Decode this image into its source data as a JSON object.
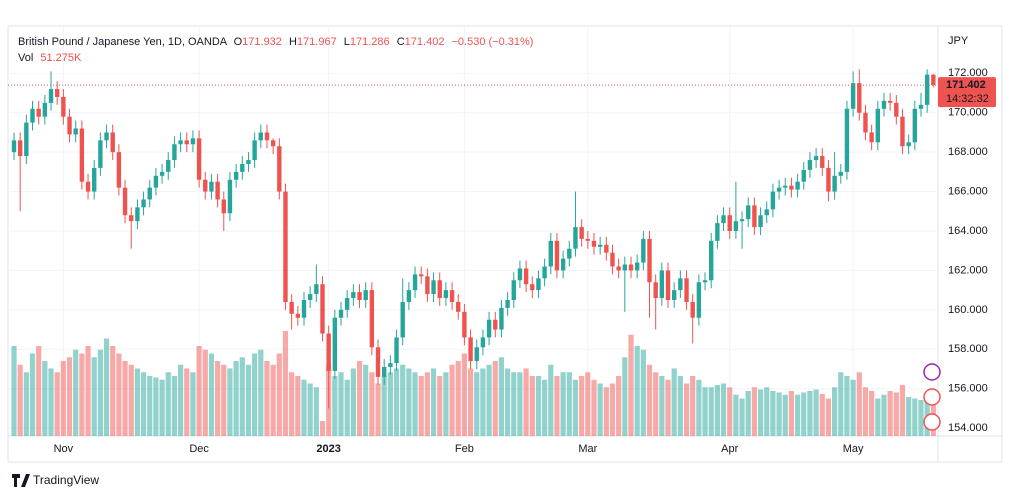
{
  "chart_data": {
    "type": "candlestick",
    "title": "British Pound / Japanese Yen, 1D, OANDA",
    "ohlc_labels": [
      "O",
      "H",
      "L",
      "C"
    ],
    "change_label": "−0.530 (−0.31%)",
    "volume_title": "Vol",
    "volume_value_label": "51.275K",
    "currency": "JPY",
    "countdown": "14:32:32",
    "brand": "TradingView",
    "up_color": "#26a69a",
    "down_color": "#ef5350",
    "ylim": [
      153.6,
      174.4
    ],
    "yticks": [
      {
        "value": 154,
        "label": "154.000"
      },
      {
        "value": 156,
        "label": "156.000"
      },
      {
        "value": 158,
        "label": "158.000"
      },
      {
        "value": 160,
        "label": "160.000"
      },
      {
        "value": 162,
        "label": "162.000"
      },
      {
        "value": 164,
        "label": "164.000"
      },
      {
        "value": 166,
        "label": "166.000"
      },
      {
        "value": 168,
        "label": "168.000"
      },
      {
        "value": 170,
        "label": "170.000"
      },
      {
        "value": 172,
        "label": "172.000"
      }
    ],
    "xticks": [
      {
        "value": 8,
        "label": "Nov"
      },
      {
        "value": 30,
        "label": "Dec"
      },
      {
        "value": 51,
        "label": "2023"
      },
      {
        "value": 73,
        "label": "Feb"
      },
      {
        "value": 93,
        "label": "Mar"
      },
      {
        "value": 116,
        "label": "Apr"
      },
      {
        "value": 136,
        "label": "May"
      }
    ],
    "grid": true,
    "open": [
      168.0,
      168.6,
      167.8,
      169.5,
      170.2,
      169.8,
      170.5,
      171.2,
      170.8,
      169.8,
      168.9,
      169.2,
      166.5,
      166.0,
      167.2,
      168.6,
      169.0,
      168.0,
      166.2,
      164.8,
      164.5,
      165.2,
      165.6,
      166.2,
      166.8,
      167.0,
      167.6,
      168.4,
      168.6,
      168.4,
      168.7,
      166.6,
      166.0,
      166.5,
      165.6,
      164.9,
      166.6,
      167.0,
      167.4,
      167.6,
      168.6,
      169.0,
      168.6,
      168.3,
      166.0,
      160.4,
      159.8,
      159.6,
      160.5,
      160.8,
      161.3,
      158.8,
      156.9,
      159.6,
      160.0,
      160.6,
      160.9,
      160.5,
      161.0,
      158.1,
      156.6,
      157.1,
      157.3,
      158.6,
      160.4,
      161.0,
      161.8,
      161.7,
      160.8,
      161.5,
      160.6,
      161.0,
      160.4,
      159.9,
      158.6,
      157.4,
      158.1,
      158.6,
      159.5,
      159.0,
      160.1,
      160.5,
      161.5,
      162.1,
      161.3,
      161.0,
      161.6,
      162.2,
      163.5,
      162.0,
      162.6,
      163.1,
      164.2,
      163.6,
      163.5,
      163.2,
      163.3,
      162.9,
      162.2,
      162.0,
      162.3,
      162.0,
      162.4,
      163.6,
      161.4,
      160.6,
      162.0,
      160.5,
      161.0,
      161.6,
      160.4,
      159.6,
      161.4,
      161.5,
      163.5,
      164.4,
      164.8,
      164.0,
      164.5,
      164.6,
      165.3,
      164.2,
      164.8,
      165.1,
      166.0,
      166.2,
      166.3,
      166.1,
      166.5,
      167.1,
      167.6,
      167.8,
      167.2,
      166.0,
      166.8,
      167.0,
      170.2,
      171.5,
      170.0,
      169.0,
      168.5,
      170.2,
      170.6,
      170.5,
      169.8,
      168.3,
      168.5,
      170.2,
      170.4,
      171.932
    ],
    "high": [
      169.0,
      169.0,
      169.9,
      170.6,
      170.6,
      170.9,
      172.1,
      171.6,
      171.2,
      170.2,
      169.6,
      169.6,
      166.9,
      167.6,
      169.0,
      169.4,
      169.4,
      168.4,
      166.6,
      165.2,
      165.6,
      166.0,
      166.6,
      167.2,
      167.4,
      168.0,
      168.8,
      169.0,
      169.0,
      169.1,
      169.1,
      167.0,
      166.9,
      166.9,
      166.0,
      167.0,
      167.4,
      167.8,
      168.0,
      169.0,
      169.4,
      169.4,
      168.7,
      168.7,
      166.4,
      160.8,
      160.2,
      160.9,
      161.2,
      162.3,
      161.7,
      159.2,
      160.0,
      160.4,
      161.0,
      161.3,
      161.3,
      161.4,
      161.4,
      158.5,
      157.5,
      157.7,
      159.0,
      161.6,
      161.4,
      162.2,
      162.2,
      162.1,
      161.9,
      161.9,
      161.4,
      161.4,
      160.8,
      160.3,
      159.0,
      158.5,
      159.0,
      159.9,
      159.9,
      160.5,
      160.9,
      161.9,
      162.5,
      162.5,
      161.7,
      162.0,
      162.6,
      163.9,
      163.9,
      163.0,
      163.5,
      166.0,
      164.6,
      164.0,
      163.9,
      163.7,
      163.7,
      163.3,
      162.6,
      162.7,
      162.7,
      162.8,
      164.0,
      164.0,
      161.8,
      162.4,
      162.4,
      161.4,
      162.0,
      162.0,
      160.8,
      161.8,
      161.9,
      163.9,
      164.8,
      165.2,
      165.2,
      166.5,
      165.0,
      165.7,
      165.7,
      165.2,
      165.5,
      166.4,
      166.6,
      166.7,
      166.7,
      166.9,
      167.5,
      168.0,
      168.2,
      168.2,
      167.6,
      168.0,
      167.4,
      170.6,
      172.1,
      172.2,
      170.4,
      169.4,
      170.6,
      171.0,
      171.0,
      170.9,
      170.2,
      168.9,
      170.6,
      171.0,
      172.2,
      171.967
    ],
    "low": [
      167.6,
      165.0,
      167.4,
      169.1,
      169.4,
      169.4,
      170.1,
      170.4,
      169.4,
      168.5,
      168.5,
      166.1,
      165.6,
      165.6,
      166.8,
      168.2,
      167.6,
      165.8,
      164.4,
      163.1,
      164.1,
      164.8,
      165.2,
      165.8,
      166.4,
      166.6,
      167.2,
      168.0,
      168.0,
      168.0,
      166.2,
      165.6,
      165.6,
      165.2,
      164.0,
      164.5,
      166.2,
      166.6,
      167.0,
      167.2,
      168.2,
      168.2,
      167.9,
      165.6,
      160.0,
      159.0,
      159.2,
      159.2,
      160.1,
      160.4,
      158.4,
      155.0,
      156.5,
      159.2,
      159.6,
      160.2,
      160.1,
      160.1,
      157.7,
      156.2,
      156.2,
      156.7,
      156.9,
      158.2,
      160.0,
      160.6,
      161.3,
      160.4,
      160.4,
      160.2,
      160.2,
      160.0,
      159.5,
      158.2,
      157.0,
      157.0,
      157.7,
      158.2,
      158.6,
      158.6,
      159.7,
      160.1,
      161.1,
      160.9,
      160.6,
      160.6,
      161.2,
      161.8,
      161.6,
      161.6,
      162.2,
      162.7,
      163.2,
      163.1,
      162.8,
      162.8,
      162.5,
      161.8,
      161.6,
      159.9,
      161.6,
      161.6,
      162.0,
      159.6,
      159.0,
      160.2,
      160.1,
      160.1,
      160.6,
      160.0,
      158.3,
      159.2,
      161.0,
      161.1,
      163.1,
      164.0,
      163.6,
      163.6,
      163.1,
      164.2,
      163.8,
      163.8,
      164.4,
      164.7,
      165.6,
      165.8,
      165.7,
      165.7,
      166.1,
      166.7,
      167.2,
      166.8,
      165.5,
      165.6,
      166.4,
      166.6,
      169.8,
      169.6,
      168.6,
      168.1,
      168.1,
      169.8,
      170.1,
      169.4,
      167.9,
      167.9,
      168.1,
      169.8,
      170.0,
      171.286
    ],
    "close": [
      168.6,
      167.8,
      169.5,
      170.2,
      169.8,
      170.5,
      171.2,
      170.8,
      169.8,
      168.9,
      169.2,
      166.5,
      166.0,
      167.2,
      168.6,
      169.0,
      168.0,
      166.2,
      164.8,
      164.5,
      165.2,
      165.6,
      166.2,
      166.8,
      167.0,
      167.6,
      168.4,
      168.6,
      168.4,
      168.7,
      166.6,
      166.0,
      166.5,
      165.6,
      164.9,
      166.6,
      167.0,
      167.4,
      167.6,
      168.6,
      169.0,
      168.6,
      168.3,
      166.0,
      160.4,
      159.8,
      159.6,
      160.5,
      160.8,
      161.3,
      158.8,
      156.9,
      159.6,
      160.0,
      160.6,
      160.9,
      160.5,
      161.0,
      158.1,
      156.6,
      157.1,
      157.3,
      158.6,
      160.4,
      161.0,
      161.8,
      161.7,
      160.8,
      161.5,
      160.6,
      161.0,
      160.4,
      159.9,
      158.6,
      157.4,
      158.1,
      158.6,
      159.5,
      159.0,
      160.1,
      160.5,
      161.5,
      162.1,
      161.3,
      161.0,
      161.6,
      162.2,
      163.5,
      162.0,
      162.6,
      163.1,
      164.2,
      163.6,
      163.5,
      163.2,
      163.3,
      162.9,
      162.2,
      162.0,
      162.3,
      162.0,
      162.4,
      163.6,
      161.4,
      160.6,
      162.0,
      160.5,
      161.0,
      161.6,
      160.4,
      159.6,
      161.4,
      161.5,
      163.5,
      164.4,
      164.8,
      164.0,
      164.5,
      164.6,
      165.3,
      164.2,
      164.8,
      165.1,
      166.0,
      166.2,
      166.3,
      166.1,
      166.5,
      167.1,
      167.6,
      167.8,
      167.2,
      166.0,
      166.8,
      167.0,
      170.2,
      171.5,
      170.0,
      169.0,
      168.5,
      170.2,
      170.6,
      170.5,
      169.8,
      168.3,
      168.5,
      170.2,
      170.4,
      171.932,
      171.402
    ],
    "volume": [
      120,
      95,
      85,
      110,
      120,
      100,
      90,
      85,
      100,
      105,
      115,
      110,
      120,
      105,
      115,
      130,
      120,
      110,
      100,
      95,
      90,
      85,
      80,
      78,
      75,
      85,
      80,
      95,
      90,
      85,
      120,
      115,
      110,
      100,
      95,
      90,
      100,
      105,
      95,
      110,
      115,
      100,
      95,
      110,
      140,
      85,
      80,
      75,
      70,
      65,
      20,
      95,
      80,
      85,
      75,
      90,
      100,
      95,
      85,
      70,
      80,
      85,
      90,
      95,
      90,
      85,
      80,
      85,
      90,
      80,
      85,
      95,
      100,
      110,
      90,
      85,
      90,
      95,
      100,
      105,
      90,
      85,
      85,
      90,
      80,
      80,
      75,
      95,
      80,
      85,
      85,
      75,
      80,
      85,
      75,
      70,
      65,
      70,
      80,
      105,
      135,
      120,
      115,
      95,
      85,
      80,
      75,
      90,
      80,
      70,
      80,
      75,
      65,
      65,
      68,
      70,
      65,
      55,
      50,
      60,
      65,
      62,
      65,
      60,
      58,
      55,
      60,
      55,
      58,
      60,
      62,
      56,
      50,
      65,
      85,
      80,
      75,
      85,
      65,
      60,
      50,
      55,
      60,
      58,
      68,
      52,
      50,
      48,
      55,
      51.275
    ]
  }
}
